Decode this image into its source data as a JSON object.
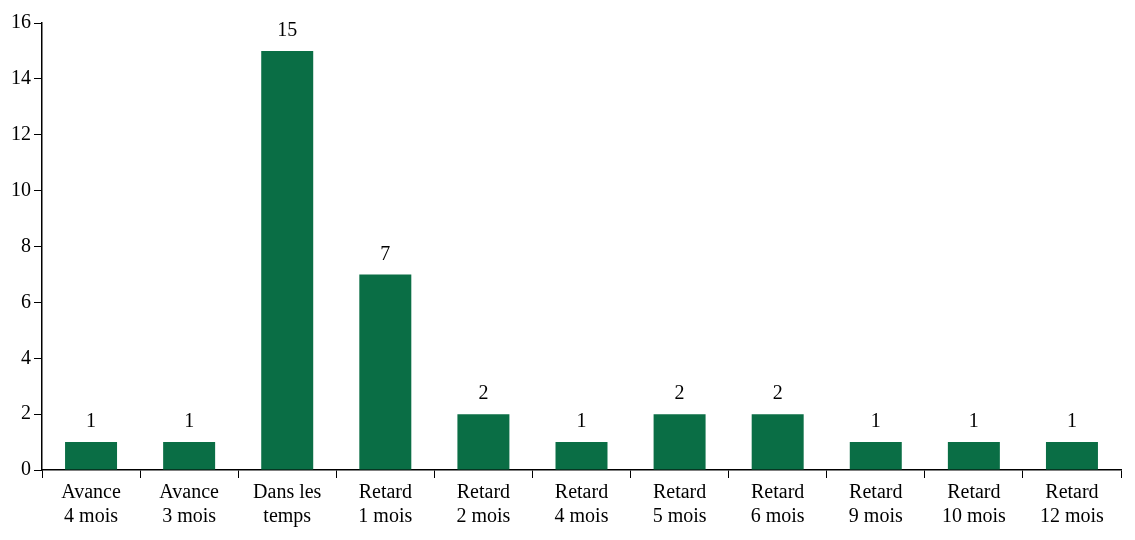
{
  "chart_data": {
    "type": "bar",
    "categories": [
      "Avance\n4 mois",
      "Avance\n3 mois",
      "Dans les\ntemps",
      "Retard\n1 mois",
      "Retard\n2 mois",
      "Retard\n4 mois",
      "Retard\n5 mois",
      "Retard\n6 mois",
      "Retard\n9 mois",
      "Retard\n10 mois",
      "Retard\n12 mois"
    ],
    "values": [
      1,
      1,
      15,
      7,
      2,
      1,
      2,
      2,
      1,
      1,
      1
    ],
    "color": "#0a6e45",
    "ylim": [
      0,
      16
    ],
    "yticks": [
      0,
      2,
      4,
      6,
      8,
      10,
      12,
      14,
      16
    ],
    "grid": false,
    "legend": false,
    "data_labels": true
  }
}
